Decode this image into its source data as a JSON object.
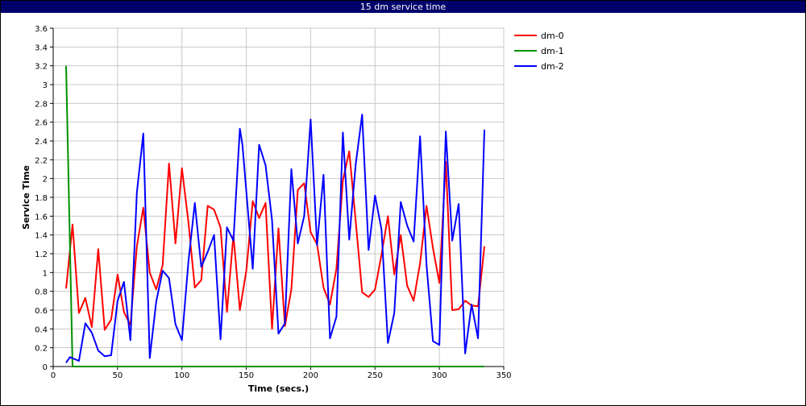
{
  "window": {
    "title": "15 dm service time"
  },
  "chart_data": {
    "type": "line",
    "title": "15 dm service time",
    "xlabel": "Time (secs.)",
    "ylabel": "Service Time",
    "xlim": [
      0,
      350
    ],
    "ylim": [
      0,
      3.6
    ],
    "grid": true,
    "legend_position": "right",
    "x_ticks": [
      "0",
      "50",
      "100",
      "150",
      "200",
      "250",
      "300",
      "350"
    ],
    "y_ticks": [
      "0",
      "0.2",
      "0.4",
      "0.6",
      "0.8",
      "1",
      "1.2",
      "1.4",
      "1.6",
      "1.8",
      "2",
      "2.2",
      "2.4",
      "2.6",
      "2.8",
      "3",
      "3.2",
      "3.4",
      "3.6"
    ],
    "series": [
      {
        "name": "dm-0",
        "color": "#ff0000",
        "points": [
          [
            10,
            0.83
          ],
          [
            15,
            1.51
          ],
          [
            20,
            0.57
          ],
          [
            25,
            0.73
          ],
          [
            30,
            0.42
          ],
          [
            35,
            1.25
          ],
          [
            40,
            0.39
          ],
          [
            45,
            0.5
          ],
          [
            50,
            0.98
          ],
          [
            55,
            0.58
          ],
          [
            60,
            0.44
          ],
          [
            65,
            1.28
          ],
          [
            70,
            1.69
          ],
          [
            75,
            1.0
          ],
          [
            80,
            0.82
          ],
          [
            85,
            1.08
          ],
          [
            90,
            2.16
          ],
          [
            95,
            1.31
          ],
          [
            100,
            2.11
          ],
          [
            105,
            1.54
          ],
          [
            110,
            0.84
          ],
          [
            115,
            0.92
          ],
          [
            120,
            1.71
          ],
          [
            125,
            1.67
          ],
          [
            130,
            1.48
          ],
          [
            135,
            0.58
          ],
          [
            140,
            1.4
          ],
          [
            145,
            0.6
          ],
          [
            150,
            1.02
          ],
          [
            155,
            1.76
          ],
          [
            160,
            1.58
          ],
          [
            165,
            1.74
          ],
          [
            170,
            0.4
          ],
          [
            175,
            1.47
          ],
          [
            180,
            0.43
          ],
          [
            185,
            0.82
          ],
          [
            190,
            1.88
          ],
          [
            195,
            1.95
          ],
          [
            200,
            1.43
          ],
          [
            205,
            1.3
          ],
          [
            210,
            0.84
          ],
          [
            215,
            0.66
          ],
          [
            220,
            1.04
          ],
          [
            225,
            1.98
          ],
          [
            230,
            2.29
          ],
          [
            235,
            1.55
          ],
          [
            240,
            0.79
          ],
          [
            245,
            0.74
          ],
          [
            250,
            0.82
          ],
          [
            255,
            1.19
          ],
          [
            260,
            1.6
          ],
          [
            265,
            0.98
          ],
          [
            270,
            1.4
          ],
          [
            275,
            0.86
          ],
          [
            280,
            0.7
          ],
          [
            285,
            1.1
          ],
          [
            290,
            1.71
          ],
          [
            295,
            1.26
          ],
          [
            300,
            0.89
          ],
          [
            305,
            2.18
          ],
          [
            310,
            0.6
          ],
          [
            315,
            0.61
          ],
          [
            320,
            0.7
          ],
          [
            325,
            0.65
          ],
          [
            330,
            0.64
          ],
          [
            335,
            1.28
          ]
        ]
      },
      {
        "name": "dm-1",
        "color": "#009100",
        "points": [
          [
            10,
            3.2
          ],
          [
            15,
            0
          ],
          [
            20,
            0
          ],
          [
            50,
            0
          ],
          [
            100,
            0
          ],
          [
            150,
            0
          ],
          [
            200,
            0
          ],
          [
            250,
            0
          ],
          [
            300,
            0
          ],
          [
            335,
            0
          ]
        ]
      },
      {
        "name": "dm-2",
        "color": "#0000ff",
        "points": [
          [
            10,
            0.04
          ],
          [
            13,
            0.1
          ],
          [
            20,
            0.06
          ],
          [
            25,
            0.46
          ],
          [
            30,
            0.36
          ],
          [
            35,
            0.17
          ],
          [
            40,
            0.11
          ],
          [
            45,
            0.12
          ],
          [
            50,
            0.7
          ],
          [
            55,
            0.9
          ],
          [
            60,
            0.28
          ],
          [
            65,
            1.85
          ],
          [
            70,
            2.48
          ],
          [
            75,
            0.09
          ],
          [
            80,
            0.69
          ],
          [
            85,
            1.02
          ],
          [
            90,
            0.94
          ],
          [
            95,
            0.45
          ],
          [
            100,
            0.28
          ],
          [
            105,
            1.11
          ],
          [
            110,
            1.74
          ],
          [
            115,
            1.06
          ],
          [
            120,
            1.22
          ],
          [
            125,
            1.4
          ],
          [
            130,
            0.29
          ],
          [
            135,
            1.48
          ],
          [
            140,
            1.34
          ],
          [
            145,
            2.53
          ],
          [
            147,
            2.36
          ],
          [
            155,
            1.04
          ],
          [
            160,
            2.36
          ],
          [
            165,
            2.14
          ],
          [
            170,
            1.56
          ],
          [
            175,
            0.35
          ],
          [
            180,
            0.46
          ],
          [
            185,
            2.1
          ],
          [
            190,
            1.31
          ],
          [
            195,
            1.6
          ],
          [
            200,
            2.63
          ],
          [
            205,
            1.29
          ],
          [
            210,
            2.04
          ],
          [
            215,
            0.3
          ],
          [
            220,
            0.53
          ],
          [
            225,
            2.49
          ],
          [
            230,
            1.35
          ],
          [
            235,
            2.15
          ],
          [
            240,
            2.68
          ],
          [
            245,
            1.24
          ],
          [
            250,
            1.82
          ],
          [
            255,
            1.46
          ],
          [
            260,
            0.25
          ],
          [
            265,
            0.57
          ],
          [
            270,
            1.75
          ],
          [
            275,
            1.5
          ],
          [
            280,
            1.33
          ],
          [
            285,
            2.45
          ],
          [
            290,
            1.08
          ],
          [
            295,
            0.27
          ],
          [
            300,
            0.23
          ],
          [
            305,
            2.5
          ],
          [
            310,
            1.34
          ],
          [
            315,
            1.73
          ],
          [
            320,
            0.14
          ],
          [
            325,
            0.66
          ],
          [
            330,
            0.3
          ],
          [
            335,
            2.52
          ]
        ]
      }
    ]
  }
}
